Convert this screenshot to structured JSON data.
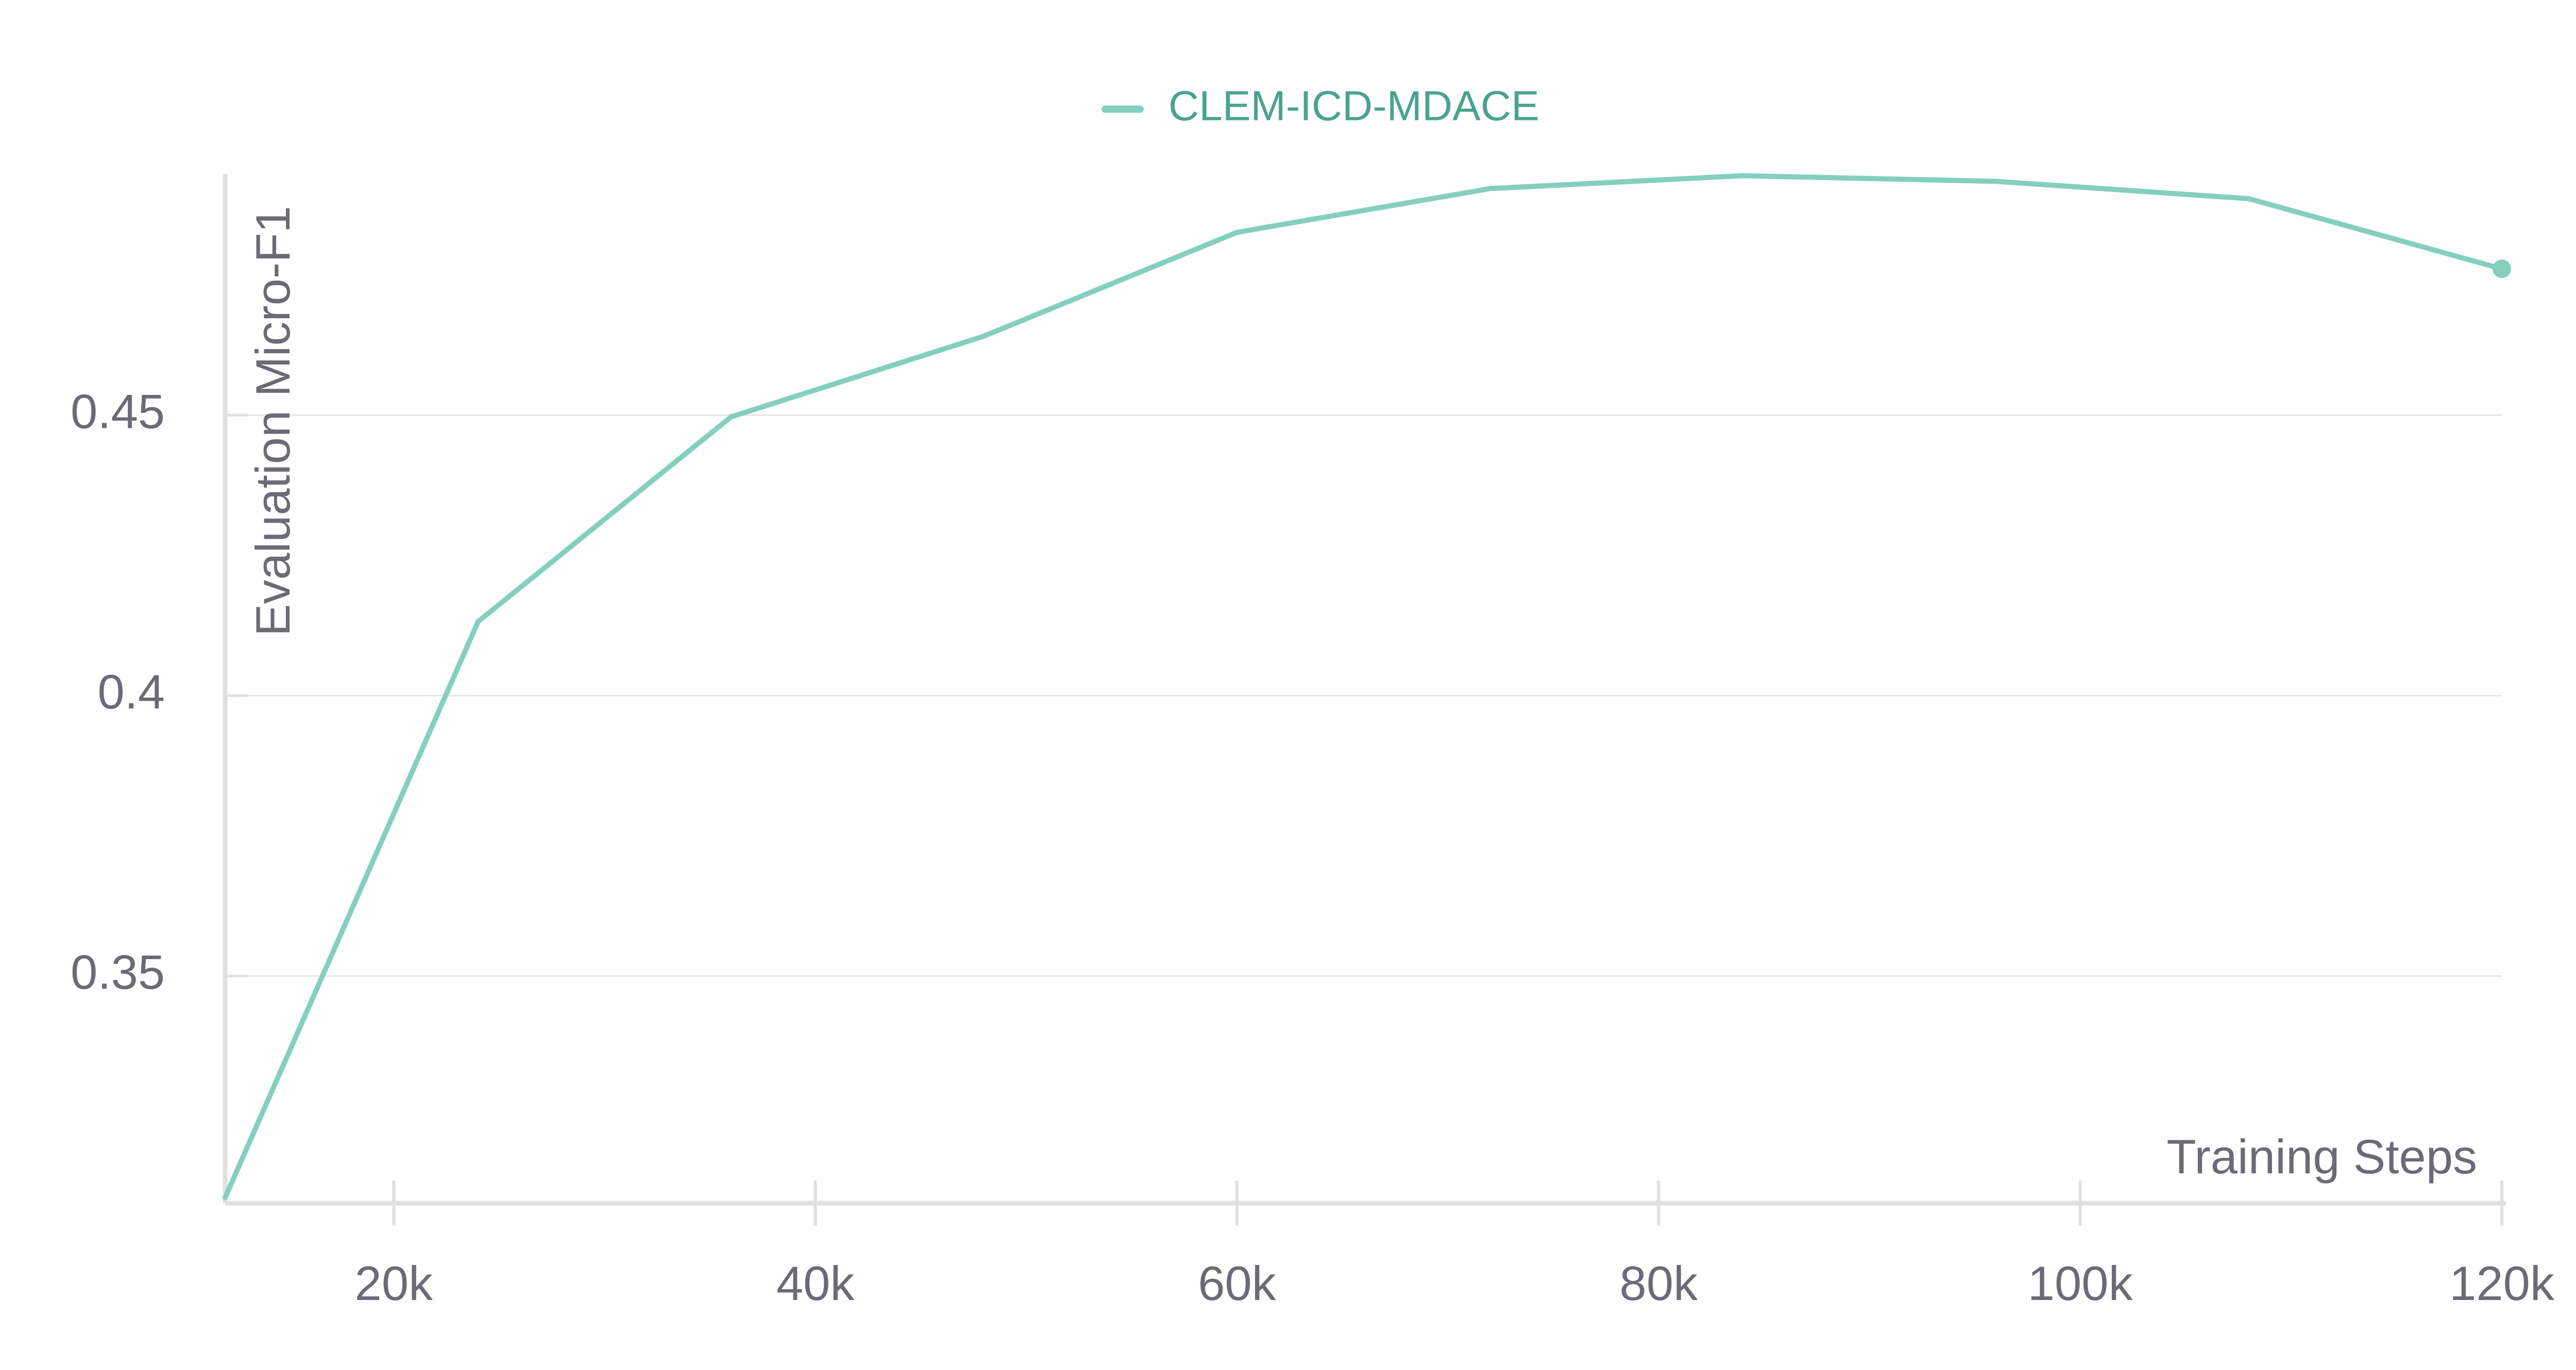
{
  "chart_data": {
    "type": "line",
    "xlabel": "Training Steps",
    "ylabel": "Evaluation Micro-F1",
    "xlim": [
      12000,
      120000
    ],
    "ylim": [
      0.3095,
      0.493
    ],
    "x_ticks": [
      20000,
      40000,
      60000,
      80000,
      100000,
      120000
    ],
    "x_tick_labels": [
      "20k",
      "40k",
      "60k",
      "80k",
      "100k",
      "120k"
    ],
    "y_ticks": [
      0.35,
      0.4,
      0.45
    ],
    "y_tick_labels": [
      "0.35",
      "0.4",
      "0.45"
    ],
    "grid": "horizontal",
    "legend": "top-center",
    "series": [
      {
        "name": "CLEM-ICD-MDACE",
        "color": "#84cfbd",
        "x": [
          12000,
          24000,
          36000,
          48000,
          60000,
          72000,
          84000,
          96000,
          108000,
          120000
        ],
        "y": [
          0.3105,
          0.4132,
          0.4497,
          0.4641,
          0.4826,
          0.4904,
          0.4927,
          0.4917,
          0.4886,
          0.4761
        ]
      }
    ]
  },
  "colors": {
    "grid": "#e6e6e6",
    "axis": "#e0e0e0",
    "tick_text": "#6b6b76",
    "legend_text": "#4aa38f"
  }
}
